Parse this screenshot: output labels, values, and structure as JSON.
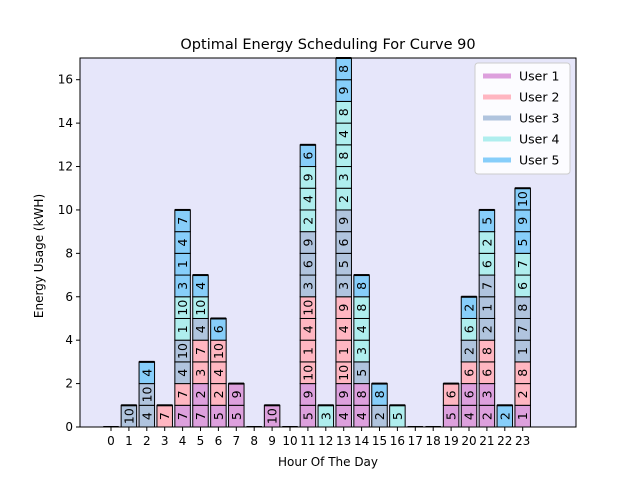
{
  "chart_data": {
    "type": "bar",
    "stacked": true,
    "title": "Optimal Energy Scheduling For Curve 90",
    "xlabel": "Hour Of The Day",
    "ylabel": "Energy Usage (kWH)",
    "ylim": [
      0,
      17
    ],
    "yticks": [
      0,
      2,
      4,
      6,
      8,
      10,
      12,
      14,
      16
    ],
    "categories": [
      "0",
      "1",
      "2",
      "3",
      "4",
      "5",
      "6",
      "7",
      "8",
      "9",
      "10",
      "11",
      "12",
      "13",
      "14",
      "15",
      "16",
      "17",
      "18",
      "19",
      "20",
      "21",
      "22",
      "23"
    ],
    "background": "#e6e6fa",
    "legend_position": "top-right",
    "series": [
      {
        "name": "User 1",
        "color": "#dda0dd"
      },
      {
        "name": "User 2",
        "color": "#ffb6c1"
      },
      {
        "name": "User 3",
        "color": "#b0c4de"
      },
      {
        "name": "User 4",
        "color": "#afeeee"
      },
      {
        "name": "User 5",
        "color": "#87cefa"
      }
    ],
    "stacks": [
      [],
      [
        {
          "user": 3,
          "label": "10"
        }
      ],
      [
        {
          "user": 3,
          "label": "4"
        },
        {
          "user": 3,
          "label": "10"
        },
        {
          "user": 5,
          "label": "4"
        }
      ],
      [
        {
          "user": 2,
          "label": "7"
        }
      ],
      [
        {
          "user": 1,
          "label": "7"
        },
        {
          "user": 2,
          "label": "7"
        },
        {
          "user": 3,
          "label": "4"
        },
        {
          "user": 3,
          "label": "10"
        },
        {
          "user": 4,
          "label": "1"
        },
        {
          "user": 4,
          "label": "10"
        },
        {
          "user": 5,
          "label": "3"
        },
        {
          "user": 5,
          "label": "1"
        },
        {
          "user": 5,
          "label": "4"
        },
        {
          "user": 5,
          "label": "7"
        }
      ],
      [
        {
          "user": 1,
          "label": "7"
        },
        {
          "user": 1,
          "label": "2"
        },
        {
          "user": 2,
          "label": "3"
        },
        {
          "user": 2,
          "label": "7"
        },
        {
          "user": 3,
          "label": "4"
        },
        {
          "user": 4,
          "label": "10"
        },
        {
          "user": 5,
          "label": "4"
        }
      ],
      [
        {
          "user": 1,
          "label": "5"
        },
        {
          "user": 2,
          "label": "2"
        },
        {
          "user": 2,
          "label": "4"
        },
        {
          "user": 2,
          "label": "10"
        },
        {
          "user": 5,
          "label": "6"
        }
      ],
      [
        {
          "user": 1,
          "label": "5"
        },
        {
          "user": 1,
          "label": "9"
        }
      ],
      [],
      [
        {
          "user": 1,
          "label": "10"
        }
      ],
      [],
      [
        {
          "user": 1,
          "label": "5"
        },
        {
          "user": 1,
          "label": "9"
        },
        {
          "user": 2,
          "label": "10"
        },
        {
          "user": 2,
          "label": "1"
        },
        {
          "user": 2,
          "label": "4"
        },
        {
          "user": 2,
          "label": "10"
        },
        {
          "user": 3,
          "label": "3"
        },
        {
          "user": 3,
          "label": "6"
        },
        {
          "user": 3,
          "label": "9"
        },
        {
          "user": 4,
          "label": "2"
        },
        {
          "user": 4,
          "label": "4"
        },
        {
          "user": 4,
          "label": "9"
        },
        {
          "user": 5,
          "label": "6"
        }
      ],
      [
        {
          "user": 4,
          "label": "3"
        }
      ],
      [
        {
          "user": 1,
          "label": "4"
        },
        {
          "user": 1,
          "label": "9"
        },
        {
          "user": 2,
          "label": "10"
        },
        {
          "user": 2,
          "label": "1"
        },
        {
          "user": 2,
          "label": "4"
        },
        {
          "user": 2,
          "label": "9"
        },
        {
          "user": 3,
          "label": "3"
        },
        {
          "user": 3,
          "label": "5"
        },
        {
          "user": 3,
          "label": "6"
        },
        {
          "user": 3,
          "label": "9"
        },
        {
          "user": 4,
          "label": "2"
        },
        {
          "user": 4,
          "label": "3"
        },
        {
          "user": 4,
          "label": "8"
        },
        {
          "user": 4,
          "label": "4"
        },
        {
          "user": 4,
          "label": "8"
        },
        {
          "user": 5,
          "label": "9"
        },
        {
          "user": 5,
          "label": "8"
        }
      ],
      [
        {
          "user": 1,
          "label": "4"
        },
        {
          "user": 1,
          "label": "8"
        },
        {
          "user": 3,
          "label": "5"
        },
        {
          "user": 4,
          "label": "3"
        },
        {
          "user": 4,
          "label": "4"
        },
        {
          "user": 4,
          "label": "8"
        },
        {
          "user": 5,
          "label": "8"
        }
      ],
      [
        {
          "user": 3,
          "label": "2"
        },
        {
          "user": 5,
          "label": "8"
        }
      ],
      [
        {
          "user": 4,
          "label": "5"
        }
      ],
      [],
      [],
      [
        {
          "user": 1,
          "label": "5"
        },
        {
          "user": 2,
          "label": "6"
        }
      ],
      [
        {
          "user": 1,
          "label": "4"
        },
        {
          "user": 1,
          "label": "6"
        },
        {
          "user": 2,
          "label": "6"
        },
        {
          "user": 3,
          "label": "2"
        },
        {
          "user": 4,
          "label": "6"
        },
        {
          "user": 5,
          "label": "2"
        }
      ],
      [
        {
          "user": 1,
          "label": "2"
        },
        {
          "user": 1,
          "label": "3"
        },
        {
          "user": 2,
          "label": "6"
        },
        {
          "user": 2,
          "label": "8"
        },
        {
          "user": 3,
          "label": "2"
        },
        {
          "user": 3,
          "label": "1"
        },
        {
          "user": 3,
          "label": "7"
        },
        {
          "user": 4,
          "label": "6"
        },
        {
          "user": 4,
          "label": "2"
        },
        {
          "user": 5,
          "label": "5"
        }
      ],
      [
        {
          "user": 5,
          "label": "2"
        }
      ],
      [
        {
          "user": 1,
          "label": "1"
        },
        {
          "user": 2,
          "label": "2"
        },
        {
          "user": 2,
          "label": "8"
        },
        {
          "user": 3,
          "label": "1"
        },
        {
          "user": 3,
          "label": "7"
        },
        {
          "user": 3,
          "label": "8"
        },
        {
          "user": 4,
          "label": "6"
        },
        {
          "user": 4,
          "label": "7"
        },
        {
          "user": 5,
          "label": "5"
        },
        {
          "user": 5,
          "label": "9"
        },
        {
          "user": 5,
          "label": "10"
        }
      ]
    ]
  }
}
